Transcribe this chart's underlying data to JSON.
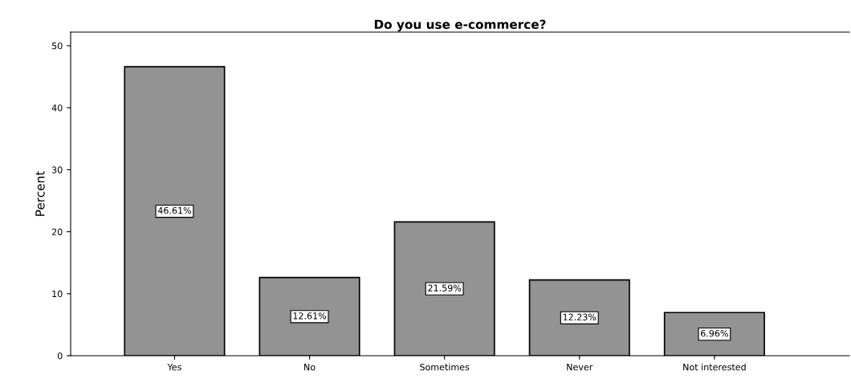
{
  "chart_data": {
    "type": "bar",
    "title": "Do you use e-commerce?",
    "ylabel": "Percent",
    "categories": [
      "Yes",
      "No",
      "Sometimes",
      "Never",
      "Not interested"
    ],
    "values": [
      46.61,
      12.61,
      21.59,
      12.23,
      6.96
    ],
    "value_labels": [
      "46.61%",
      "12.61%",
      "21.59%",
      "12.23%",
      "6.96%"
    ],
    "color": "#939393",
    "ylim": [
      0,
      52.2
    ],
    "yticks": [
      0,
      10,
      20,
      30,
      40,
      50
    ],
    "grid": false
  }
}
